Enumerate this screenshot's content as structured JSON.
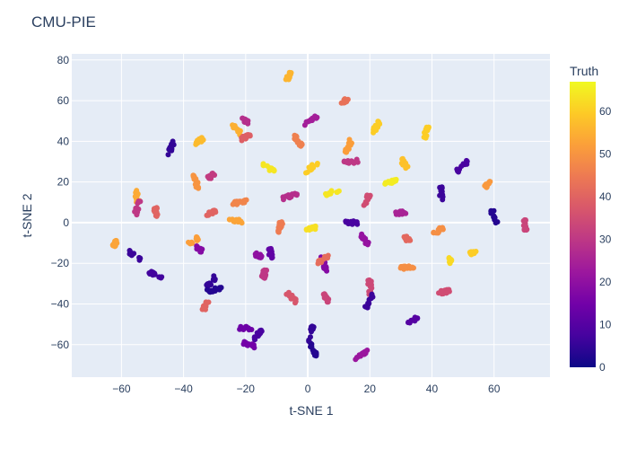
{
  "chart_data": {
    "type": "scatter",
    "title": "CMU-PIE",
    "xlabel": "t-SNE 1",
    "ylabel": "t-SNE 2",
    "xlim": [
      -76,
      78
    ],
    "ylim": [
      -76,
      83
    ],
    "xticks": [
      -60,
      -40,
      -20,
      0,
      20,
      40,
      60
    ],
    "yticks": [
      -60,
      -40,
      -20,
      0,
      20,
      40,
      60,
      80
    ],
    "grid": true,
    "colorbar": {
      "title": "Truth",
      "min": 0,
      "max": 67,
      "ticks": [
        0,
        10,
        20,
        30,
        40,
        50,
        60
      ],
      "colorscale": "plasma"
    },
    "clusters": [
      {
        "x": -6,
        "y": 72,
        "truth": 56
      },
      {
        "x": 12,
        "y": 60,
        "truth": 43
      },
      {
        "x": -20,
        "y": 50,
        "truth": 28
      },
      {
        "x": 1,
        "y": 50,
        "truth": 24
      },
      {
        "x": -44,
        "y": 37,
        "truth": 5
      },
      {
        "x": -35,
        "y": 40,
        "truth": 57
      },
      {
        "x": -23,
        "y": 46,
        "truth": 55
      },
      {
        "x": -20,
        "y": 42,
        "truth": 39
      },
      {
        "x": -3,
        "y": 40,
        "truth": 46
      },
      {
        "x": 13,
        "y": 37,
        "truth": 52
      },
      {
        "x": 14,
        "y": 30,
        "truth": 30
      },
      {
        "x": 22,
        "y": 47,
        "truth": 60
      },
      {
        "x": 38,
        "y": 44,
        "truth": 60
      },
      {
        "x": 31,
        "y": 29,
        "truth": 58
      },
      {
        "x": 50,
        "y": 28,
        "truth": 8
      },
      {
        "x": -13,
        "y": 27,
        "truth": 64
      },
      {
        "x": 1,
        "y": 27,
        "truth": 60
      },
      {
        "x": -36,
        "y": 20,
        "truth": 50
      },
      {
        "x": -31,
        "y": 23,
        "truth": 31
      },
      {
        "x": -55,
        "y": 13,
        "truth": 54
      },
      {
        "x": 27,
        "y": 20,
        "truth": 65
      },
      {
        "x": 58,
        "y": 19,
        "truth": 51
      },
      {
        "x": 8,
        "y": 15,
        "truth": 64
      },
      {
        "x": -6,
        "y": 13,
        "truth": 28
      },
      {
        "x": 43,
        "y": 14,
        "truth": 6
      },
      {
        "x": -55,
        "y": 7,
        "truth": 30
      },
      {
        "x": -49,
        "y": 5,
        "truth": 40
      },
      {
        "x": -31,
        "y": 5,
        "truth": 40
      },
      {
        "x": -22,
        "y": 10,
        "truth": 47
      },
      {
        "x": 19,
        "y": 11,
        "truth": 35
      },
      {
        "x": 31,
        "y": 5,
        "truth": 25
      },
      {
        "x": 60,
        "y": 3,
        "truth": 3
      },
      {
        "x": -23,
        "y": 1,
        "truth": 53
      },
      {
        "x": -9,
        "y": -2,
        "truth": 45
      },
      {
        "x": 1,
        "y": -3,
        "truth": 63
      },
      {
        "x": 14,
        "y": 0,
        "truth": 8
      },
      {
        "x": 18,
        "y": -8,
        "truth": 21
      },
      {
        "x": 70,
        "y": -1,
        "truth": 33
      },
      {
        "x": 42,
        "y": -4,
        "truth": 49
      },
      {
        "x": 32,
        "y": -8,
        "truth": 41
      },
      {
        "x": -62,
        "y": -10,
        "truth": 53
      },
      {
        "x": -37,
        "y": -9,
        "truth": 52
      },
      {
        "x": -35,
        "y": -13,
        "truth": 18
      },
      {
        "x": -16,
        "y": -16,
        "truth": 20
      },
      {
        "x": -12,
        "y": -15,
        "truth": 12
      },
      {
        "x": 5,
        "y": -20,
        "truth": 18
      },
      {
        "x": 5,
        "y": -18,
        "truth": 42
      },
      {
        "x": 32,
        "y": -22,
        "truth": 49
      },
      {
        "x": 46,
        "y": -18,
        "truth": 62
      },
      {
        "x": 53,
        "y": -15,
        "truth": 60
      },
      {
        "x": -56,
        "y": -16,
        "truth": 6
      },
      {
        "x": -49,
        "y": -26,
        "truth": 7
      },
      {
        "x": -14,
        "y": -25,
        "truth": 30
      },
      {
        "x": -31,
        "y": -29,
        "truth": 5
      },
      {
        "x": -30,
        "y": -33,
        "truth": 3
      },
      {
        "x": 20,
        "y": -32,
        "truth": 34
      },
      {
        "x": 20,
        "y": -38,
        "truth": 6
      },
      {
        "x": 44,
        "y": -34,
        "truth": 35
      },
      {
        "x": -5,
        "y": -37,
        "truth": 37
      },
      {
        "x": 6,
        "y": -37,
        "truth": 33
      },
      {
        "x": -33,
        "y": -41,
        "truth": 40
      },
      {
        "x": 34,
        "y": -48,
        "truth": 10
      },
      {
        "x": -20,
        "y": -52,
        "truth": 14
      },
      {
        "x": -16,
        "y": -55,
        "truth": 8
      },
      {
        "x": 1,
        "y": -55,
        "truth": 5
      },
      {
        "x": 2,
        "y": -63,
        "truth": 3
      },
      {
        "x": 17,
        "y": -65,
        "truth": 22
      },
      {
        "x": -19,
        "y": -60,
        "truth": 15
      }
    ]
  }
}
